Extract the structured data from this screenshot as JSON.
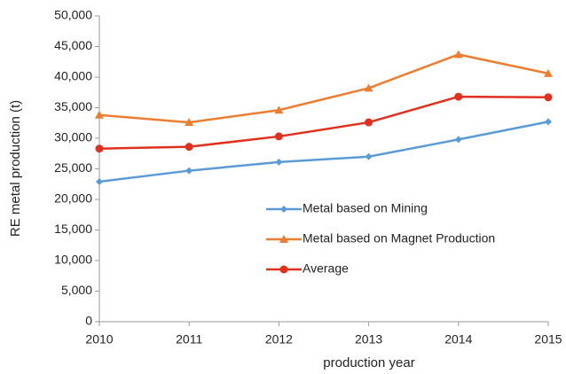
{
  "chart_data": {
    "type": "line",
    "xlabel": "production year",
    "ylabel": "RE metal production (t)",
    "x": [
      2010,
      2011,
      2012,
      2013,
      2014,
      2015
    ],
    "xlim": [
      2010,
      2015
    ],
    "xticks": [
      2010,
      2011,
      2012,
      2013,
      2014,
      2015
    ],
    "ylim": [
      0,
      50000
    ],
    "yticks": [
      0,
      {
        "value": 5000,
        "label": "5,000"
      },
      {
        "value": 10000,
        "label": "10,000"
      },
      {
        "value": 15000,
        "label": "15,000"
      },
      {
        "value": 20000,
        "label": "20,000"
      },
      {
        "value": 25000,
        "label": "25,000"
      },
      {
        "value": 30000,
        "label": "30,000"
      },
      {
        "value": 35000,
        "label": "35,000"
      },
      {
        "value": 40000,
        "label": "40,000"
      },
      {
        "value": 45000,
        "label": "45,000"
      },
      {
        "value": 50000,
        "label": "50,000"
      }
    ],
    "grid": false,
    "series": [
      {
        "name": "Metal based on Mining",
        "color": "#5b9bd5",
        "marker": "diamond",
        "values": [
          22900,
          24700,
          26100,
          27000,
          29800,
          32700
        ]
      },
      {
        "name": "Metal based on Magnet Production",
        "color": "#ed7d31",
        "marker": "triangle",
        "values": [
          33800,
          32600,
          34600,
          38200,
          43700,
          40600
        ]
      },
      {
        "name": "Average",
        "color": "#e0301e",
        "marker": "circle",
        "values": [
          28300,
          28600,
          30300,
          32600,
          36800,
          36700
        ]
      }
    ]
  }
}
